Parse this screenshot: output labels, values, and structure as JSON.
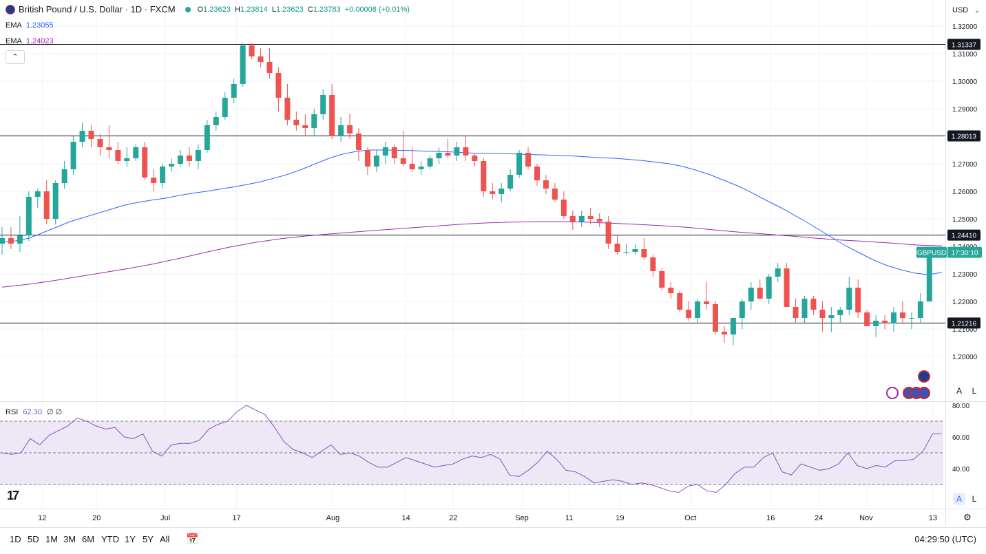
{
  "header": {
    "symbol": "British Pound / U.S. Dollar · 1D · FXCM",
    "ohlc": {
      "o_label": "O",
      "o": "1.23623",
      "h_label": "H",
      "h": "1.23814",
      "l_label": "L",
      "l": "1.23623",
      "c_label": "C",
      "c": "1.23783",
      "change": "+0.00008 (+0.01%)"
    }
  },
  "ema_fast": {
    "label": "EMA",
    "value": "1.23055",
    "color": "#2962ff"
  },
  "ema_slow": {
    "label": "EMA",
    "value": "1.24023",
    "color": "#9c27b0"
  },
  "currency_button": "USD",
  "price_tags": {
    "r1": "1.31337",
    "r2": "1.28013",
    "r3": "1.24410",
    "r4": "1.21216",
    "symbol": "GBPUSD",
    "countdown": "17:30:10"
  },
  "rsi_legend": {
    "label": "RSI",
    "value": "62.30",
    "extra": "∅ ∅"
  },
  "scale_buttons": {
    "auto": "A",
    "log": "L"
  },
  "timeframes": [
    "1D",
    "5D",
    "1M",
    "3M",
    "6M",
    "YTD",
    "1Y",
    "5Y",
    "All"
  ],
  "clock": "04:29:50 (UTC)",
  "logo": "17",
  "colors": {
    "up": "#26a69a",
    "down": "#ef5350",
    "rsi": "#7e57c2",
    "band": "#ede7f6",
    "hline": "#131722"
  },
  "chart_data": {
    "type": "candlestick",
    "title": "British Pound / U.S. Dollar · 1D · FXCM",
    "price_axis": {
      "ticks": [
        "1.32000",
        "1.31000",
        "1.30000",
        "1.29000",
        "1.28000",
        "1.27000",
        "1.26000",
        "1.25000",
        "1.24000",
        "1.23000",
        "1.22000",
        "1.21000",
        "1.20000"
      ],
      "range": [
        1.19,
        1.325
      ]
    },
    "time_axis": {
      "ticks": [
        "12",
        "20",
        "Jul",
        "17",
        "Aug",
        "14",
        "22",
        "Sep",
        "11",
        "19",
        "Oct",
        "16",
        "24",
        "Nov",
        "13"
      ]
    },
    "horizontal_levels": [
      1.31337,
      1.28013,
      1.2441,
      1.21216
    ],
    "candles": [
      [
        1.241,
        1.247,
        1.237,
        1.243
      ],
      [
        1.243,
        1.247,
        1.239,
        1.241
      ],
      [
        1.241,
        1.251,
        1.238,
        1.244
      ],
      [
        1.244,
        1.26,
        1.242,
        1.258
      ],
      [
        1.258,
        1.261,
        1.254,
        1.26
      ],
      [
        1.26,
        1.264,
        1.248,
        1.25
      ],
      [
        1.25,
        1.264,
        1.248,
        1.263
      ],
      [
        1.263,
        1.271,
        1.261,
        1.268
      ],
      [
        1.268,
        1.28,
        1.266,
        1.278
      ],
      [
        1.278,
        1.285,
        1.276,
        1.282
      ],
      [
        1.282,
        1.284,
        1.276,
        1.279
      ],
      [
        1.279,
        1.281,
        1.273,
        1.276
      ],
      [
        1.276,
        1.284,
        1.272,
        1.275
      ],
      [
        1.275,
        1.278,
        1.27,
        1.271
      ],
      [
        1.271,
        1.276,
        1.269,
        1.272
      ],
      [
        1.272,
        1.277,
        1.271,
        1.276
      ],
      [
        1.276,
        1.278,
        1.264,
        1.265
      ],
      [
        1.265,
        1.268,
        1.26,
        1.263
      ],
      [
        1.263,
        1.27,
        1.261,
        1.269
      ],
      [
        1.269,
        1.272,
        1.267,
        1.27
      ],
      [
        1.27,
        1.275,
        1.269,
        1.273
      ],
      [
        1.273,
        1.276,
        1.269,
        1.271
      ],
      [
        1.271,
        1.277,
        1.268,
        1.275
      ],
      [
        1.275,
        1.286,
        1.274,
        1.284
      ],
      [
        1.284,
        1.289,
        1.282,
        1.287
      ],
      [
        1.287,
        1.296,
        1.286,
        1.294
      ],
      [
        1.294,
        1.301,
        1.292,
        1.299
      ],
      [
        1.299,
        1.314,
        1.298,
        1.313
      ],
      [
        1.313,
        1.314,
        1.308,
        1.309
      ],
      [
        1.309,
        1.312,
        1.305,
        1.307
      ],
      [
        1.307,
        1.312,
        1.301,
        1.303
      ],
      [
        1.303,
        1.305,
        1.289,
        1.294
      ],
      [
        1.294,
        1.299,
        1.284,
        1.286
      ],
      [
        1.286,
        1.289,
        1.282,
        1.284
      ],
      [
        1.284,
        1.288,
        1.28,
        1.283
      ],
      [
        1.283,
        1.29,
        1.28,
        1.288
      ],
      [
        1.288,
        1.297,
        1.286,
        1.295
      ],
      [
        1.295,
        1.299,
        1.279,
        1.28
      ],
      [
        1.28,
        1.287,
        1.278,
        1.284
      ],
      [
        1.284,
        1.288,
        1.279,
        1.281
      ],
      [
        1.281,
        1.283,
        1.271,
        1.275
      ],
      [
        1.275,
        1.276,
        1.266,
        1.269
      ],
      [
        1.269,
        1.275,
        1.267,
        1.273
      ],
      [
        1.273,
        1.278,
        1.27,
        1.276
      ],
      [
        1.276,
        1.277,
        1.27,
        1.272
      ],
      [
        1.272,
        1.282,
        1.269,
        1.27
      ],
      [
        1.27,
        1.276,
        1.267,
        1.268
      ],
      [
        1.268,
        1.271,
        1.266,
        1.269
      ],
      [
        1.269,
        1.273,
        1.268,
        1.272
      ],
      [
        1.272,
        1.276,
        1.27,
        1.274
      ],
      [
        1.274,
        1.279,
        1.272,
        1.273
      ],
      [
        1.273,
        1.278,
        1.271,
        1.276
      ],
      [
        1.276,
        1.28,
        1.271,
        1.273
      ],
      [
        1.273,
        1.274,
        1.269,
        1.271
      ],
      [
        1.271,
        1.272,
        1.258,
        1.26
      ],
      [
        1.26,
        1.263,
        1.257,
        1.259
      ],
      [
        1.259,
        1.263,
        1.256,
        1.261
      ],
      [
        1.261,
        1.268,
        1.26,
        1.266
      ],
      [
        1.266,
        1.275,
        1.265,
        1.274
      ],
      [
        1.274,
        1.276,
        1.268,
        1.269
      ],
      [
        1.269,
        1.27,
        1.262,
        1.264
      ],
      [
        1.264,
        1.266,
        1.259,
        1.261
      ],
      [
        1.261,
        1.263,
        1.256,
        1.257
      ],
      [
        1.257,
        1.26,
        1.25,
        1.251
      ],
      [
        1.251,
        1.253,
        1.246,
        1.249
      ],
      [
        1.249,
        1.253,
        1.247,
        1.251
      ],
      [
        1.251,
        1.254,
        1.248,
        1.25
      ],
      [
        1.25,
        1.252,
        1.247,
        1.249
      ],
      [
        1.249,
        1.251,
        1.239,
        1.241
      ],
      [
        1.241,
        1.244,
        1.237,
        1.238
      ],
      [
        1.238,
        1.241,
        1.237,
        1.238
      ],
      [
        1.238,
        1.241,
        1.237,
        1.239
      ],
      [
        1.239,
        1.243,
        1.235,
        1.236
      ],
      [
        1.236,
        1.237,
        1.229,
        1.231
      ],
      [
        1.231,
        1.232,
        1.224,
        1.225
      ],
      [
        1.225,
        1.227,
        1.221,
        1.223
      ],
      [
        1.223,
        1.224,
        1.216,
        1.217
      ],
      [
        1.217,
        1.22,
        1.213,
        1.214
      ],
      [
        1.214,
        1.221,
        1.212,
        1.22
      ],
      [
        1.22,
        1.227,
        1.217,
        1.219
      ],
      [
        1.219,
        1.22,
        1.208,
        1.209
      ],
      [
        1.209,
        1.211,
        1.205,
        1.208
      ],
      [
        1.208,
        1.214,
        1.204,
        1.214
      ],
      [
        1.214,
        1.221,
        1.21,
        1.22
      ],
      [
        1.22,
        1.227,
        1.217,
        1.225
      ],
      [
        1.225,
        1.228,
        1.221,
        1.221
      ],
      [
        1.221,
        1.23,
        1.219,
        1.229
      ],
      [
        1.229,
        1.234,
        1.227,
        1.232
      ],
      [
        1.232,
        1.234,
        1.219,
        1.218
      ],
      [
        1.218,
        1.221,
        1.212,
        1.214
      ],
      [
        1.214,
        1.222,
        1.212,
        1.221
      ],
      [
        1.221,
        1.222,
        1.215,
        1.217
      ],
      [
        1.217,
        1.22,
        1.209,
        1.214
      ],
      [
        1.214,
        1.218,
        1.209,
        1.215
      ],
      [
        1.215,
        1.218,
        1.212,
        1.217
      ],
      [
        1.217,
        1.229,
        1.215,
        1.225
      ],
      [
        1.225,
        1.228,
        1.214,
        1.216
      ],
      [
        1.216,
        1.217,
        1.211,
        1.211
      ],
      [
        1.211,
        1.215,
        1.207,
        1.213
      ],
      [
        1.213,
        1.215,
        1.21,
        1.212
      ],
      [
        1.212,
        1.218,
        1.209,
        1.216
      ],
      [
        1.216,
        1.22,
        1.212,
        1.214
      ],
      [
        1.214,
        1.216,
        1.21,
        1.214
      ],
      [
        1.214,
        1.223,
        1.212,
        1.22
      ],
      [
        1.22,
        1.239,
        1.22,
        1.238
      ],
      [
        1.23623,
        1.23814,
        1.23623,
        1.23783
      ]
    ],
    "ema_fast_series": [
      1.2415,
      1.242,
      1.243,
      1.245,
      1.247,
      1.249,
      1.2505,
      1.252,
      1.2535,
      1.255,
      1.256,
      1.2568,
      1.2575,
      1.2585,
      1.2593,
      1.26,
      1.2608,
      1.2616,
      1.2625,
      1.2635,
      1.2648,
      1.2662,
      1.268,
      1.27,
      1.272,
      1.2735,
      1.2745,
      1.275,
      1.275,
      1.2749,
      1.2748,
      1.2746,
      1.2745,
      1.2743,
      1.274,
      1.2738,
      1.2738,
      1.2737,
      1.2735,
      1.2733,
      1.2732,
      1.273,
      1.2728,
      1.2725,
      1.2722,
      1.272,
      1.2716,
      1.2712,
      1.2706,
      1.27,
      1.269,
      1.2676,
      1.266,
      1.264,
      1.262,
      1.2596,
      1.257,
      1.2545,
      1.2518,
      1.249,
      1.246,
      1.243,
      1.24,
      1.2375,
      1.235,
      1.233,
      1.2315,
      1.2303,
      1.2297,
      1.23055
    ],
    "ema_slow_series": [
      1.2252,
      1.2262,
      1.2275,
      1.229,
      1.2305,
      1.232,
      1.2337,
      1.2357,
      1.2378,
      1.2398,
      1.2415,
      1.2428,
      1.2438,
      1.2446,
      1.2453,
      1.246,
      1.2467,
      1.2473,
      1.248,
      1.2485,
      1.2488,
      1.249,
      1.249,
      1.2488,
      1.2484,
      1.248,
      1.2475,
      1.2469,
      1.246,
      1.2452,
      1.2445,
      1.2438,
      1.243,
      1.2423,
      1.2418,
      1.2412,
      1.2405,
      1.2402
    ],
    "rsi": {
      "label": "RSI",
      "value": 62.3,
      "ticks": [
        "80.00",
        "60.00",
        "40.00"
      ],
      "levels": [
        70,
        50,
        30
      ],
      "range": [
        20,
        80
      ],
      "series": [
        50,
        49,
        50,
        59,
        55,
        61,
        64,
        67,
        72,
        70,
        67,
        65,
        66,
        60,
        59,
        62,
        51,
        48,
        55,
        56,
        56,
        58,
        65,
        68,
        70,
        76,
        80,
        77,
        74,
        66,
        57,
        52,
        50,
        47,
        51,
        55,
        49,
        50,
        48,
        44,
        41,
        41,
        44,
        47,
        45,
        43,
        41,
        42,
        43,
        46,
        48,
        47,
        49,
        46,
        36,
        35,
        39,
        44,
        51,
        46,
        39,
        38,
        35,
        31,
        32,
        33,
        32,
        30,
        31,
        30,
        28,
        26,
        25,
        29,
        30,
        26,
        25,
        30,
        37,
        41,
        41,
        47,
        50,
        38,
        36,
        43,
        41,
        39,
        40,
        43,
        50,
        42,
        40,
        42,
        41,
        45,
        45,
        46,
        51,
        62,
        62
      ]
    }
  }
}
